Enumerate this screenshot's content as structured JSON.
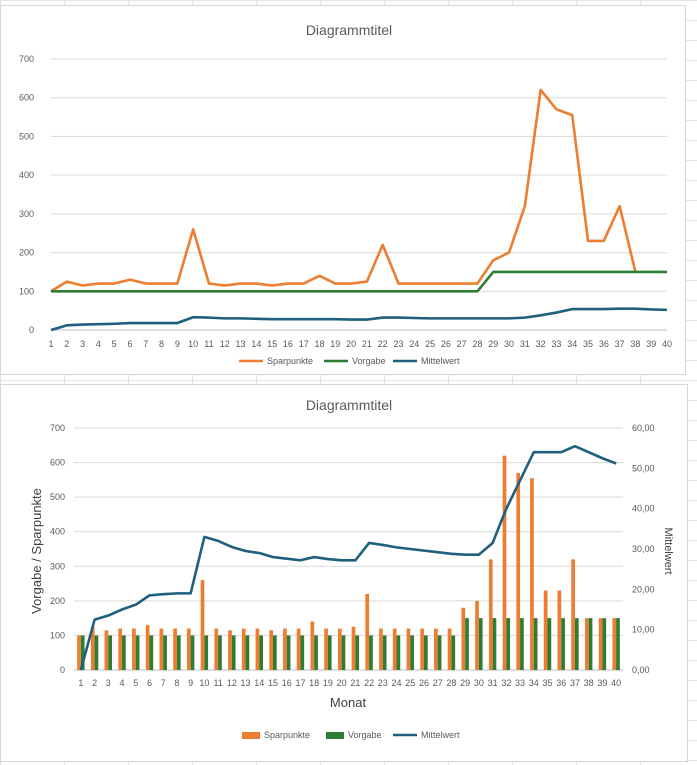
{
  "colors": {
    "sparpunkte": "#ED7D31",
    "vorgabe": "#2E7D32",
    "mittelwert": "#1F5F7F",
    "grid": "#d9d9d9",
    "axis": "#bfbfbf"
  },
  "chart_data": [
    {
      "type": "line",
      "title": "Diagrammtitel",
      "xlabel": "",
      "ylabel": "",
      "ylim": [
        0,
        700
      ],
      "yticks": [
        "0",
        "100",
        "200",
        "300",
        "400",
        "500",
        "600",
        "700"
      ],
      "categories": [
        "1",
        "2",
        "3",
        "4",
        "5",
        "6",
        "7",
        "8",
        "9",
        "10",
        "11",
        "12",
        "13",
        "14",
        "15",
        "16",
        "17",
        "18",
        "19",
        "20",
        "21",
        "22",
        "23",
        "24",
        "25",
        "26",
        "27",
        "28",
        "29",
        "30",
        "31",
        "32",
        "33",
        "34",
        "35",
        "36",
        "37",
        "38",
        "39",
        "40"
      ],
      "grid": true,
      "legend": "bottom",
      "series": [
        {
          "name": "Sparpunkte",
          "values": [
            100,
            125,
            115,
            120,
            120,
            130,
            120,
            120,
            120,
            260,
            120,
            115,
            120,
            120,
            115,
            120,
            120,
            140,
            120,
            120,
            125,
            220,
            120,
            120,
            120,
            120,
            120,
            120,
            180,
            200,
            320,
            620,
            570,
            555,
            230,
            230,
            320,
            150,
            null,
            null
          ]
        },
        {
          "name": "Vorgabe",
          "values": [
            100,
            100,
            100,
            100,
            100,
            100,
            100,
            100,
            100,
            100,
            100,
            100,
            100,
            100,
            100,
            100,
            100,
            100,
            100,
            100,
            100,
            100,
            100,
            100,
            100,
            100,
            100,
            100,
            150,
            150,
            150,
            150,
            150,
            150,
            150,
            150,
            150,
            150,
            150,
            150
          ]
        },
        {
          "name": "Mittelwert",
          "values": [
            0,
            12,
            14,
            15,
            16,
            18,
            18,
            18,
            18,
            33,
            32,
            30,
            30,
            29,
            28,
            28,
            28,
            28,
            28,
            27,
            27,
            32,
            32,
            31,
            30,
            30,
            30,
            30,
            30,
            30,
            32,
            38,
            45,
            54,
            54,
            54,
            55,
            55,
            53,
            52
          ]
        }
      ]
    },
    {
      "type": "bar",
      "title": "Diagrammtitel",
      "xlabel": "Monat",
      "ylabel": "Vorgabe / Sparpunkte",
      "y2label": "Mittelwert",
      "ylim": [
        0,
        700
      ],
      "y2lim": [
        0,
        60
      ],
      "yticks": [
        "0",
        "100",
        "200",
        "300",
        "400",
        "500",
        "600",
        "700"
      ],
      "y2ticks": [
        "0,00",
        "10,00",
        "20,00",
        "30,00",
        "40,00",
        "50,00",
        "60,00"
      ],
      "categories": [
        "1",
        "2",
        "3",
        "4",
        "5",
        "6",
        "7",
        "8",
        "9",
        "10",
        "11",
        "12",
        "13",
        "14",
        "15",
        "16",
        "17",
        "18",
        "19",
        "20",
        "21",
        "22",
        "23",
        "24",
        "25",
        "26",
        "27",
        "28",
        "29",
        "30",
        "31",
        "32",
        "33",
        "34",
        "35",
        "36",
        "37",
        "38",
        "39",
        "40"
      ],
      "grid": true,
      "legend": "bottom",
      "series": [
        {
          "name": "Sparpunkte",
          "type": "bar",
          "values": [
            100,
            125,
            115,
            120,
            120,
            130,
            120,
            120,
            120,
            260,
            120,
            115,
            120,
            120,
            115,
            120,
            120,
            140,
            120,
            120,
            125,
            220,
            120,
            120,
            120,
            120,
            120,
            120,
            180,
            200,
            320,
            620,
            570,
            555,
            230,
            230,
            320,
            150,
            150,
            150
          ]
        },
        {
          "name": "Vorgabe",
          "type": "bar",
          "values": [
            100,
            100,
            100,
            100,
            100,
            100,
            100,
            100,
            100,
            100,
            100,
            100,
            100,
            100,
            100,
            100,
            100,
            100,
            100,
            100,
            100,
            100,
            100,
            100,
            100,
            100,
            100,
            100,
            150,
            150,
            150,
            150,
            150,
            150,
            150,
            150,
            150,
            150,
            150,
            150
          ]
        },
        {
          "name": "Mittelwert",
          "type": "line",
          "axis": "right",
          "values": [
            0,
            12.5,
            13.5,
            15,
            16.2,
            18.5,
            18.8,
            19,
            19,
            33,
            32,
            30.5,
            29.5,
            29,
            28,
            27.6,
            27.2,
            28,
            27.5,
            27.2,
            27.2,
            31.5,
            31,
            30.4,
            30,
            29.6,
            29.2,
            28.8,
            28.6,
            28.6,
            31.5,
            40,
            47,
            54,
            54,
            54,
            55.5,
            54,
            52.5,
            51.2
          ]
        }
      ]
    }
  ]
}
